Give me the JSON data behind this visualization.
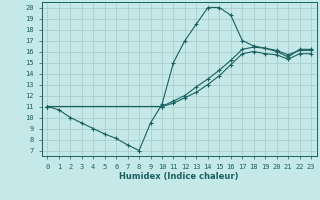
{
  "xlabel": "Humidex (Indice chaleur)",
  "bg_color": "#c5e8e8",
  "grid_color": "#aacece",
  "line_color": "#1a6060",
  "xlim": [
    -0.5,
    23.5
  ],
  "ylim": [
    6.5,
    20.5
  ],
  "xticks": [
    0,
    1,
    2,
    3,
    4,
    5,
    6,
    7,
    8,
    9,
    10,
    11,
    12,
    13,
    14,
    15,
    16,
    17,
    18,
    19,
    20,
    21,
    22,
    23
  ],
  "yticks": [
    7,
    8,
    9,
    10,
    11,
    12,
    13,
    14,
    15,
    16,
    17,
    18,
    19,
    20
  ],
  "line1_x": [
    0,
    1,
    2,
    3,
    4,
    5,
    6,
    7,
    8,
    9,
    10,
    11,
    12,
    13,
    14,
    15,
    16,
    17,
    18,
    19,
    20,
    21,
    22,
    23
  ],
  "line1_y": [
    11,
    10.7,
    10,
    9.5,
    9.0,
    8.5,
    8.1,
    7.5,
    7.0,
    9.5,
    11.2,
    15.0,
    17.0,
    18.5,
    20.0,
    20.0,
    19.3,
    17.0,
    16.5,
    16.3,
    16.0,
    15.5,
    16.2,
    16.2
  ],
  "line2_x": [
    0,
    10,
    11,
    12,
    13,
    14,
    15,
    16,
    17,
    18,
    19,
    20,
    21,
    22,
    23
  ],
  "line2_y": [
    11,
    11.0,
    11.5,
    12.0,
    12.8,
    13.5,
    14.3,
    15.2,
    16.2,
    16.4,
    16.3,
    16.1,
    15.7,
    16.1,
    16.1
  ],
  "line3_x": [
    0,
    10,
    11,
    12,
    13,
    14,
    15,
    16,
    17,
    18,
    19,
    20,
    21,
    22,
    23
  ],
  "line3_y": [
    11,
    11.0,
    11.3,
    11.8,
    12.3,
    13.0,
    13.8,
    14.8,
    15.8,
    16.0,
    15.8,
    15.7,
    15.3,
    15.8,
    15.8
  ]
}
